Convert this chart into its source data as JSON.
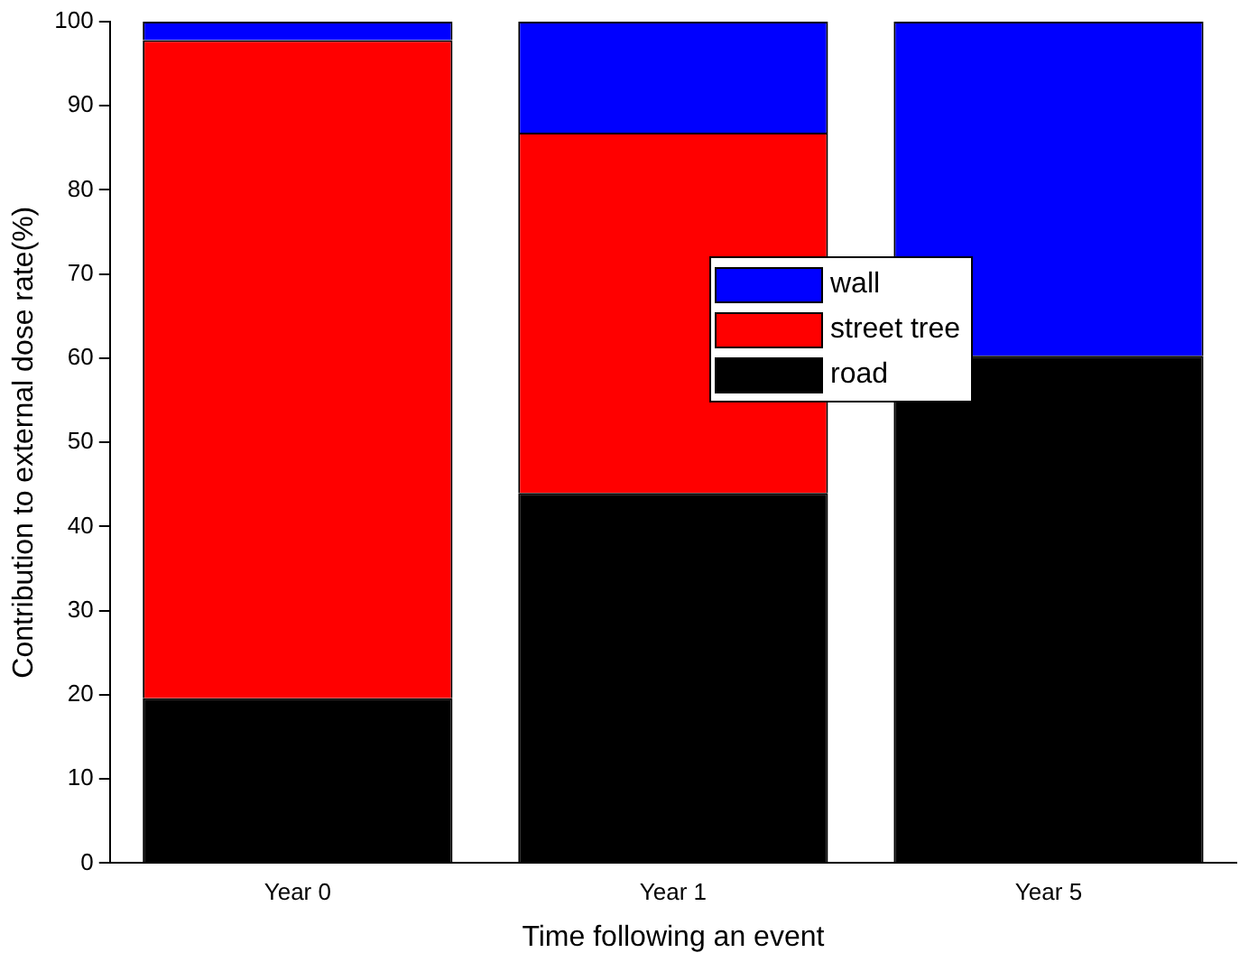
{
  "chart_data": {
    "type": "bar",
    "stacked": true,
    "xlabel": "Time following an event",
    "ylabel": "Contribution to external dose rate(%)",
    "categories": [
      "Year 0",
      "Year 1",
      "Year 5"
    ],
    "series": [
      {
        "name": "road",
        "color": "#000000",
        "values": [
          19.6,
          44,
          60.3
        ]
      },
      {
        "name": "street tree",
        "color": "#ff0000",
        "values": [
          78.2,
          42.8,
          0
        ]
      },
      {
        "name": "wall",
        "color": "#0000ff",
        "values": [
          2.2,
          13.2,
          39.7
        ]
      }
    ],
    "ylim": [
      0,
      100
    ],
    "yticks": [
      0,
      10,
      20,
      30,
      40,
      50,
      60,
      70,
      80,
      90,
      100
    ],
    "grid": false,
    "legend": "center"
  }
}
